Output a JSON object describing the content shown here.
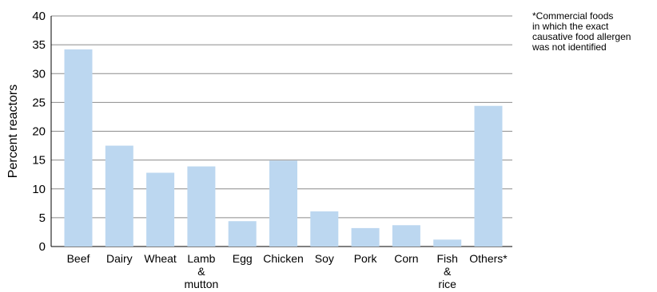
{
  "chart_data": {
    "type": "bar",
    "categories": [
      "Beef",
      "Dairy",
      "Wheat",
      "Lamb\n&\nmutton",
      "Egg",
      "Chicken",
      "Soy",
      "Pork",
      "Corn",
      "Fish\n&\nrice",
      "Others*"
    ],
    "values": [
      34.2,
      17.5,
      12.8,
      13.9,
      4.4,
      14.9,
      6.1,
      3.2,
      3.7,
      1.2,
      24.4
    ],
    "title": "",
    "xlabel": "",
    "ylabel": "Percent reactors",
    "ylim": [
      0,
      40
    ],
    "yticks": [
      0,
      5,
      10,
      15,
      20,
      25,
      30,
      35,
      40
    ],
    "grid": true,
    "bar_color": "#bcd7f0",
    "grid_color": "#8c8c8c",
    "footnote": "*Commercial foods\n in which the exact\n causative food allergen\n was not identified"
  }
}
